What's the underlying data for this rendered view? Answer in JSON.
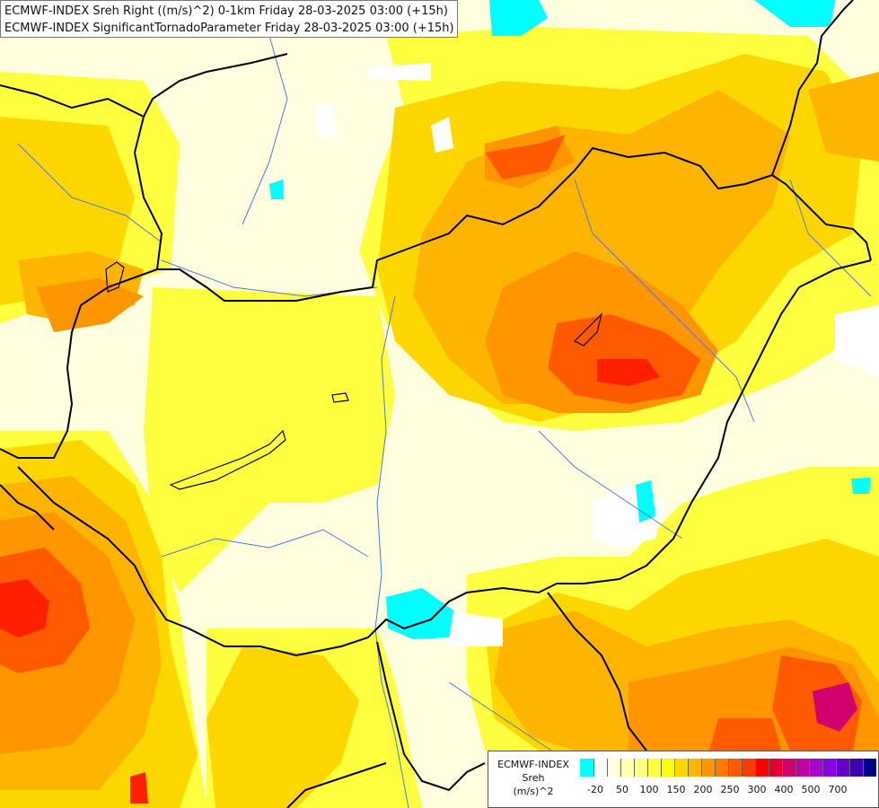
{
  "header": {
    "line1": "ECMWF-INDEX Sreh Right ((m/s)^2) 0-1km Friday 28-03-2025 03:00 (+15h)",
    "line2": "ECMWF-INDEX SignificantTornadoParameter Friday 28-03-2025 03:00 (+15h)"
  },
  "legend": {
    "title_line1": "ECMWF-INDEX",
    "title_line2": "Sreh",
    "title_line3": "(m/s)^2",
    "colors": [
      "#00ffff",
      "#ffffff",
      "#ffffe0",
      "#ffffb4",
      "#ffff80",
      "#ffff40",
      "#ffff00",
      "#ffd700",
      "#ffb400",
      "#ff9600",
      "#ff7800",
      "#ff5a00",
      "#ff3c00",
      "#ff0000",
      "#e60032",
      "#d2006e",
      "#c000a0",
      "#aa00d2",
      "#8c00e6",
      "#6400c8",
      "#3c00b4",
      "#00008c"
    ],
    "tick_labels": [
      "-20",
      "50",
      "100",
      "150",
      "200",
      "250",
      "300",
      "400",
      "500",
      "700"
    ]
  }
}
